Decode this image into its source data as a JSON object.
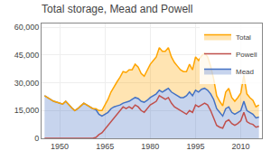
{
  "chart_data": {
    "type": "area",
    "title": "Total storage, Mead and Powell",
    "x": [
      1945,
      1946,
      1947,
      1948,
      1949,
      1950,
      1951,
      1952,
      1953,
      1954,
      1955,
      1956,
      1957,
      1958,
      1959,
      1960,
      1961,
      1962,
      1963,
      1964,
      1965,
      1966,
      1967,
      1968,
      1969,
      1970,
      1971,
      1972,
      1973,
      1974,
      1975,
      1976,
      1977,
      1978,
      1979,
      1980,
      1981,
      1982,
      1983,
      1984,
      1985,
      1986,
      1987,
      1988,
      1989,
      1990,
      1991,
      1992,
      1993,
      1994,
      1995,
      1996,
      1997,
      1998,
      1999,
      2000,
      2001,
      2002,
      2003,
      2004,
      2005,
      2006,
      2007,
      2008,
      2009,
      2010,
      2011,
      2012,
      2013,
      2014,
      2015,
      2016
    ],
    "series": [
      {
        "name": "Mead",
        "color": "#4472C4",
        "type": "area",
        "values": [
          23000,
          22000,
          21000,
          20000,
          19500,
          19000,
          18500,
          20000,
          18000,
          16500,
          15000,
          16000,
          17500,
          19000,
          18000,
          17000,
          16000,
          15500,
          13000,
          12000,
          13000,
          14000,
          16000,
          17000,
          17500,
          18000,
          19000,
          19500,
          20000,
          21000,
          22000,
          21500,
          20000,
          19500,
          20500,
          22000,
          23000,
          24000,
          26000,
          25000,
          26000,
          27000,
          25000,
          24000,
          23000,
          22000,
          22000,
          23000,
          25000,
          23000,
          26000,
          25000,
          26500,
          27000,
          26000,
          24000,
          21000,
          16000,
          14000,
          12000,
          16000,
          17000,
          14000,
          13000,
          14000,
          15000,
          20000,
          15000,
          14000,
          13000,
          11000,
          11500
        ]
      },
      {
        "name": "Powell",
        "color": "#C0504D",
        "type": "line",
        "values": [
          0,
          0,
          0,
          0,
          0,
          0,
          0,
          0,
          0,
          0,
          0,
          0,
          0,
          0,
          0,
          0,
          0,
          500,
          2000,
          3000,
          5000,
          7000,
          9000,
          11000,
          13000,
          15000,
          17000,
          16000,
          17000,
          16000,
          18000,
          17000,
          15000,
          14000,
          16000,
          18000,
          19000,
          20000,
          23000,
          22000,
          21000,
          22000,
          19000,
          17000,
          16000,
          15000,
          14000,
          13000,
          15000,
          14000,
          18000,
          17000,
          18000,
          19000,
          18000,
          15000,
          11000,
          7000,
          6000,
          5500,
          9000,
          10000,
          8000,
          7000,
          8000,
          9500,
          14000,
          9000,
          8000,
          7500,
          6000,
          6500
        ]
      },
      {
        "name": "Total",
        "color": "#FFA500",
        "type": "area",
        "values": [
          23000,
          22000,
          21000,
          20000,
          19500,
          19000,
          18500,
          20000,
          18000,
          16500,
          15000,
          16000,
          17500,
          19000,
          18000,
          17000,
          16000,
          16000,
          15000,
          15000,
          18000,
          21000,
          25000,
          28000,
          30500,
          33000,
          36000,
          35500,
          37000,
          37000,
          40000,
          38500,
          35000,
          33500,
          36500,
          40000,
          42000,
          44000,
          49000,
          47000,
          47000,
          49000,
          44000,
          41000,
          39000,
          37000,
          36000,
          36000,
          40000,
          37000,
          44000,
          42000,
          44500,
          46000,
          44000,
          39000,
          32000,
          23000,
          20000,
          17500,
          25000,
          27000,
          22000,
          20000,
          22000,
          24500,
          34000,
          24000,
          22000,
          20500,
          17000,
          18000
        ]
      }
    ],
    "xlim": [
      1944,
      2017
    ],
    "xticks": [
      1950,
      1965,
      1980,
      1995,
      2010
    ],
    "ylim": [
      0,
      62000
    ],
    "yticks": [
      0,
      {
        "value": 15000,
        "label": "15,000"
      },
      {
        "value": 30000,
        "label": "30,000"
      },
      {
        "value": 45000,
        "label": "45,000"
      },
      {
        "value": 60000,
        "label": "60,000"
      }
    ],
    "grid": true,
    "legend": "upper right"
  }
}
